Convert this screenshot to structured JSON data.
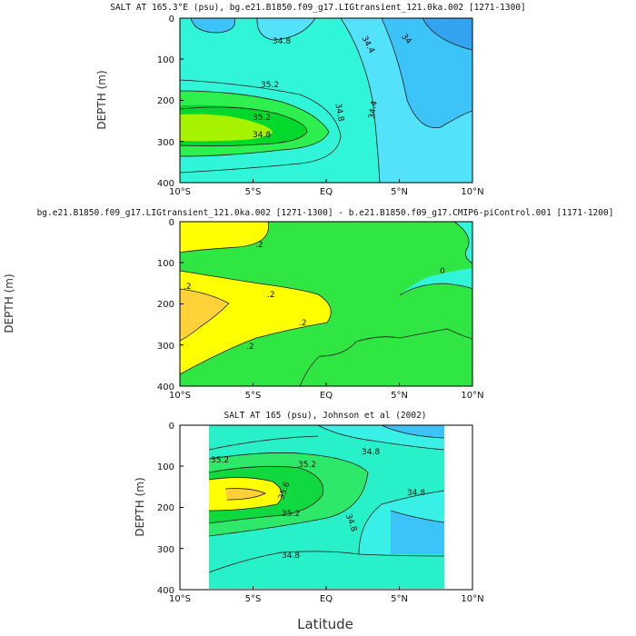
{
  "chart_data": [
    {
      "type": "contour",
      "title": "SALT AT 165.3°E (psu), bg.e21.B1850.f09_g17.LIGtransient_121.0ka.002 [1271-1300]",
      "ylabel": "DEPTH (m)",
      "x_ticks": [
        "10°S",
        "5°S",
        "EQ",
        "5°N",
        "10°N"
      ],
      "y_ticks": [
        "0",
        "100",
        "200",
        "300",
        "400"
      ],
      "xlim": [
        -10,
        10
      ],
      "ylim": [
        400,
        0
      ],
      "contour_labels": [
        "34.8",
        "34.4",
        "34",
        "35.2",
        "35.2",
        "34.8",
        "34.8",
        "34.4"
      ],
      "colors": {
        "deep_blue": "#33a3f0",
        "blue": "#3cc4f8",
        "light_blue": "#52e2f9",
        "cyan": "#30f5d8",
        "green": "#2df04e",
        "dark_green": "#00d92b",
        "lime": "#a6f200"
      }
    },
    {
      "type": "contour",
      "title": "bg.e21.B1850.f09_g17.LIGtransient_121.0ka.002 [1271-1300] - b.e21.B1850.f09_g17.CMIP6-piControl.001 [1171-1200]",
      "ylabel": "DEPTH (m)",
      "x_ticks": [
        "10°S",
        "5°S",
        "EQ",
        "5°N",
        "10°N"
      ],
      "y_ticks": [
        "0",
        "100",
        "200",
        "300",
        "400"
      ],
      "xlim": [
        -10,
        10
      ],
      "ylim": [
        400,
        0
      ],
      "contour_labels": [
        ".2",
        ".2",
        ".2",
        ".2",
        ".2",
        "0"
      ],
      "colors": {
        "gold": "#ffd23a",
        "yellow": "#ffff00",
        "green": "#30e642",
        "cyan": "#30f5d8"
      }
    },
    {
      "type": "contour",
      "title": "SALT AT 165 (psu), Johnson et al (2002)",
      "ylabel": "DEPTH (m)",
      "xlabel": "Latitude",
      "x_ticks": [
        "10°S",
        "5°S",
        "EQ",
        "5°N",
        "10°N"
      ],
      "y_ticks": [
        "0",
        "100",
        "200",
        "300",
        "400"
      ],
      "xlim": [
        -10,
        10
      ],
      "ylim": [
        400,
        0
      ],
      "contour_labels": [
        "35.2",
        "35.2",
        "34.8",
        "35.2",
        "35.6",
        "34.8",
        "34.8",
        "34.8"
      ],
      "colors": {
        "blue": "#3cc4f8",
        "cyan": "#38f0e6",
        "teal": "#28f0c8",
        "green": "#2ee86a",
        "dark_green": "#0fd93e",
        "yellow": "#ffff00",
        "gold": "#ffcf3a"
      }
    }
  ]
}
